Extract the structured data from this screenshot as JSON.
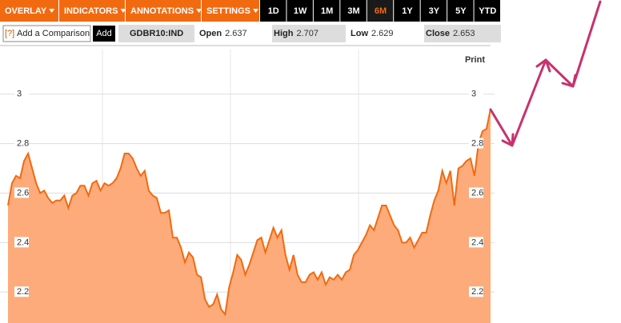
{
  "toolbar": {
    "menus": [
      "OVERLAY",
      "INDICATORS",
      "ANNOTATIONS",
      "SETTINGS"
    ],
    "periods": [
      "1D",
      "1W",
      "1M",
      "3M",
      "6M",
      "1Y",
      "3Y",
      "5Y",
      "YTD"
    ],
    "selected_period": "6M"
  },
  "quote_bar": {
    "help": "[?]",
    "comparison_placeholder": "Add a Comparison",
    "add_button": "Add",
    "ticker": "GDBR10:IND",
    "open": {
      "label": "Open",
      "value": 2.637
    },
    "high": {
      "label": "High",
      "value": 2.707
    },
    "low": {
      "label": "Low",
      "value": 2.629
    },
    "close": {
      "label": "Close",
      "value": 2.653
    }
  },
  "print_label": "Print",
  "chart_data": {
    "type": "area",
    "color": "#f26a10",
    "fill": "#fdab7a",
    "grid": true,
    "ylim": [
      2.075,
      3.18
    ],
    "yticks": [
      2.2,
      2.4,
      2.6,
      2.8,
      3
    ],
    "values": [
      2.55,
      2.64,
      2.67,
      2.66,
      2.73,
      2.76,
      2.7,
      2.64,
      2.6,
      2.61,
      2.58,
      2.56,
      2.57,
      2.57,
      2.59,
      2.54,
      2.59,
      2.6,
      2.63,
      2.63,
      2.59,
      2.64,
      2.65,
      2.61,
      2.64,
      2.63,
      2.64,
      2.66,
      2.7,
      2.76,
      2.76,
      2.74,
      2.7,
      2.67,
      2.69,
      2.61,
      2.59,
      2.58,
      2.52,
      2.52,
      2.53,
      2.42,
      2.42,
      2.38,
      2.32,
      2.36,
      2.34,
      2.27,
      2.26,
      2.17,
      2.14,
      2.15,
      2.19,
      2.13,
      2.11,
      2.22,
      2.28,
      2.35,
      2.33,
      2.27,
      2.31,
      2.36,
      2.41,
      2.42,
      2.36,
      2.41,
      2.46,
      2.42,
      2.45,
      2.35,
      2.29,
      2.35,
      2.27,
      2.24,
      2.24,
      2.27,
      2.28,
      2.25,
      2.28,
      2.23,
      2.26,
      2.25,
      2.27,
      2.25,
      2.28,
      2.29,
      2.35,
      2.37,
      2.4,
      2.43,
      2.47,
      2.45,
      2.5,
      2.55,
      2.55,
      2.51,
      2.47,
      2.45,
      2.4,
      2.4,
      2.42,
      2.38,
      2.41,
      2.44,
      2.44,
      2.51,
      2.57,
      2.61,
      2.69,
      2.64,
      2.69,
      2.55,
      2.7,
      2.71,
      2.73,
      2.74,
      2.67,
      2.8,
      2.85,
      2.86,
      2.94
    ]
  }
}
